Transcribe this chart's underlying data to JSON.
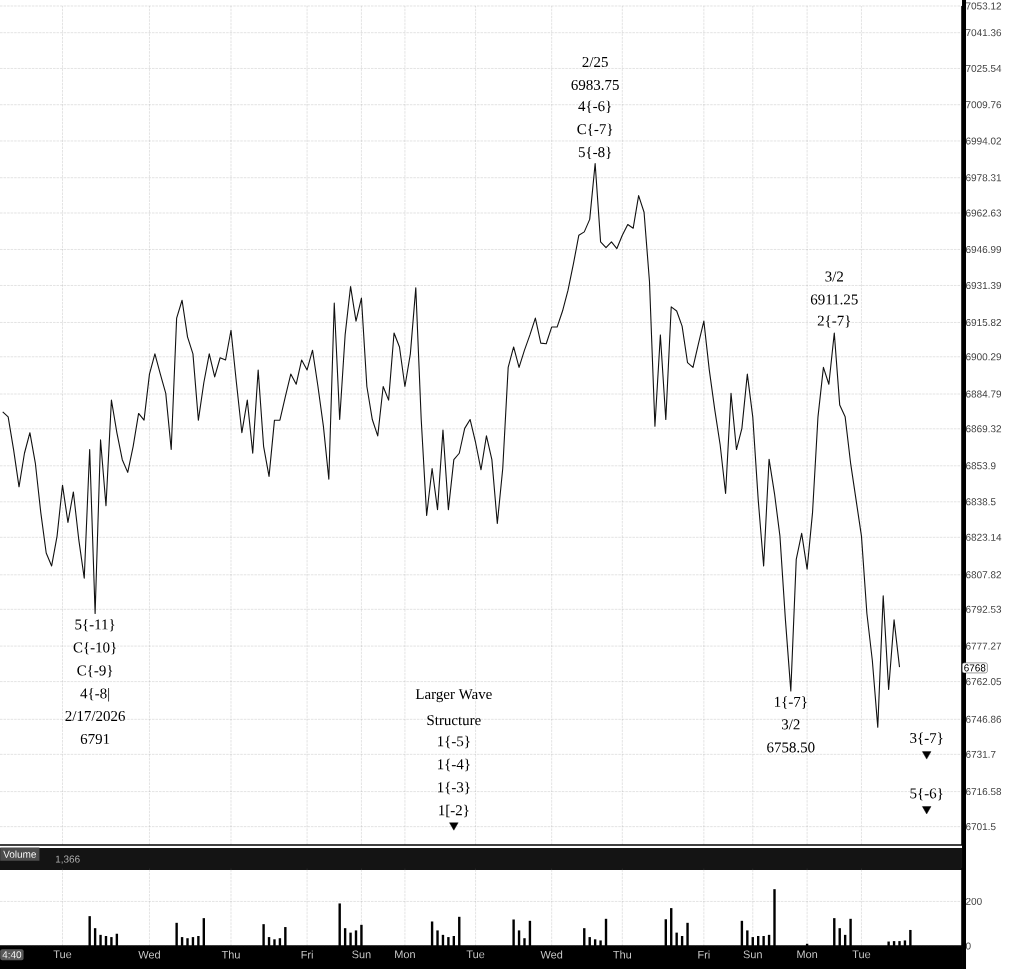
{
  "chart_data": [
    {
      "type": "line",
      "log": true,
      "grid": true,
      "tick_labels": "y",
      "categories": [
        null,
        null,
        null,
        null,
        null,
        null,
        null,
        null,
        null,
        null,
        null,
        null,
        null,
        null,
        null,
        null,
        null,
        null,
        null,
        null,
        null,
        null,
        null,
        null,
        null,
        null,
        null,
        null,
        null,
        null,
        null,
        null,
        null,
        null,
        null,
        null,
        null,
        null,
        null,
        null,
        null,
        null,
        null,
        null,
        null,
        null,
        null,
        null,
        null,
        null,
        null,
        null,
        null,
        null,
        null,
        null,
        null,
        null,
        null,
        null,
        null,
        null,
        null,
        null,
        null,
        null,
        null,
        null,
        null,
        null,
        null,
        null,
        null,
        null,
        null,
        null,
        null,
        null,
        null,
        null,
        null,
        null,
        null,
        null,
        null,
        null,
        null,
        null,
        null,
        null,
        null,
        null,
        null,
        null,
        null,
        null,
        null,
        null,
        null,
        null,
        null,
        null,
        null,
        null,
        null,
        null,
        null,
        null,
        null,
        null,
        null,
        null,
        null,
        null,
        null,
        null,
        null,
        null,
        null,
        null,
        null,
        null,
        null,
        null,
        null,
        null,
        null,
        null,
        null,
        null,
        null,
        null,
        null,
        null,
        null,
        null,
        null,
        null,
        null,
        null,
        null,
        null,
        null,
        null,
        null,
        null,
        null,
        null,
        null,
        null,
        null,
        null,
        null,
        null,
        null,
        null,
        null,
        null,
        null,
        null,
        null,
        null,
        null,
        null,
        null,
        null,
        null,
        null,
        null,
        null,
        null,
        null,
        null,
        null,
        null,
        null,
        null
      ],
      "ylim": [
        6693.6,
        7053.12
      ],
      "yticks": [
        6701.5,
        6716.58,
        6731.7,
        6746.86,
        6762.05,
        6777.27,
        6792.53,
        6807.82,
        6823.14,
        6838.5,
        6853.9,
        6869.32,
        6884.79,
        6900.29,
        6915.82,
        6931.39,
        6946.99,
        6962.63,
        6978.31,
        6994.02,
        7009.76,
        7025.54,
        7041.36,
        7053.12
      ],
      "series": [
        {
          "type": "line",
          "color": "#111111",
          "marker": "none",
          "values": [
            6877,
            6875,
            6861,
            6845,
            6859,
            6868,
            6855,
            6834,
            6817,
            6811,
            6824,
            6846,
            6830,
            6843,
            6822,
            6806,
            6861,
            6791,
            6865,
            6837,
            6882,
            6868,
            6856,
            6851,
            6862,
            6876,
            6873,
            6893,
            6902,
            6893,
            6885,
            6861,
            6917,
            6925,
            6909,
            6902,
            6873,
            6890,
            6902,
            6892,
            6900,
            6899,
            6912,
            6890,
            6868,
            6882,
            6859,
            6895,
            6862,
            6849,
            6873,
            6873,
            6883,
            6893,
            6889,
            6899,
            6895,
            6903,
            6888,
            6871,
            6848,
            6924,
            6874,
            6910,
            6931,
            6916,
            6926,
            6888,
            6874,
            6867,
            6888,
            6882,
            6911,
            6905,
            6888,
            6902,
            6930,
            6874,
            6833,
            6853,
            6835,
            6869,
            6835,
            6856,
            6859,
            6870,
            6874,
            6864,
            6852,
            6867,
            6856,
            6829,
            6853,
            6896,
            6905,
            6896,
            6903,
            6910,
            6917,
            6907,
            6906,
            6913,
            6913,
            6920,
            6929,
            6941,
            6953,
            6955,
            6960,
            6983.75,
            6950,
            6948,
            6950,
            6947,
            6953,
            6958,
            6956,
            6970,
            6963,
            6933,
            6871,
            6910,
            6874,
            6922,
            6920,
            6914,
            6898,
            6896,
            6906,
            6916,
            6895,
            6878,
            6863,
            6842,
            6885,
            6861,
            6870,
            6893,
            6875,
            6839,
            6811,
            6857,
            6842,
            6824,
            6789,
            6758.5,
            6814,
            6825,
            6810,
            6834,
            6875,
            6896,
            6889,
            6911.25,
            6880,
            6875,
            6855,
            6839,
            6824,
            6791,
            6771,
            6743,
            6799,
            6759,
            6788,
            6768,
            null,
            null,
            null,
            null,
            null,
            null,
            null,
            null,
            null,
            null,
            null
          ]
        },
        {
          "type": "scatter",
          "color": "#000000",
          "marker": "triangle",
          "values": [
            null,
            null,
            null,
            null,
            null,
            null,
            null,
            null,
            null,
            null,
            null,
            null,
            null,
            null,
            null,
            null,
            null,
            null,
            null,
            null,
            null,
            null,
            null,
            null,
            null,
            null,
            null,
            null,
            null,
            null,
            null,
            null,
            null,
            null,
            null,
            null,
            null,
            null,
            null,
            null,
            null,
            null,
            null,
            null,
            null,
            null,
            null,
            null,
            null,
            null,
            null,
            null,
            null,
            null,
            null,
            null,
            null,
            null,
            null,
            null,
            null,
            null,
            null,
            null,
            null,
            null,
            null,
            null,
            null,
            null,
            null,
            null,
            null,
            null,
            null,
            null,
            null,
            null,
            null,
            null,
            null,
            null,
            null,
            6702,
            null,
            null,
            null,
            null,
            null,
            null,
            null,
            null,
            null,
            null,
            null,
            null,
            null,
            null,
            null,
            null,
            null,
            null,
            null,
            null,
            null,
            null,
            null,
            null,
            null,
            null,
            null,
            null,
            null,
            null,
            null,
            null,
            null,
            null,
            null,
            null,
            null,
            null,
            null,
            null,
            null,
            null,
            null,
            null,
            null,
            null,
            null,
            null,
            null,
            null,
            null,
            null,
            null,
            null,
            null,
            null,
            null,
            null,
            null,
            null,
            null,
            null,
            null,
            null,
            null,
            null,
            null,
            null,
            null,
            null,
            null,
            null,
            null,
            null,
            null,
            null,
            null,
            null,
            null,
            null,
            null,
            null,
            null,
            null,
            null,
            null,
            null,
            null,
            null,
            null,
            null,
            null,
            null
          ]
        },
        {
          "type": "scatter",
          "color": "#000000",
          "marker": "triangle",
          "values": [
            null,
            null,
            null,
            null,
            null,
            null,
            null,
            null,
            null,
            null,
            null,
            null,
            null,
            null,
            null,
            null,
            null,
            null,
            null,
            null,
            null,
            null,
            null,
            null,
            null,
            null,
            null,
            null,
            null,
            null,
            null,
            null,
            null,
            null,
            null,
            null,
            null,
            null,
            null,
            null,
            null,
            null,
            null,
            null,
            null,
            null,
            null,
            null,
            null,
            null,
            null,
            null,
            null,
            null,
            null,
            null,
            null,
            null,
            null,
            null,
            null,
            null,
            null,
            null,
            null,
            null,
            null,
            null,
            null,
            null,
            null,
            null,
            null,
            null,
            null,
            null,
            null,
            null,
            null,
            null,
            null,
            null,
            null,
            null,
            null,
            null,
            null,
            null,
            null,
            null,
            null,
            null,
            null,
            null,
            null,
            null,
            null,
            null,
            null,
            null,
            null,
            null,
            null,
            null,
            null,
            null,
            null,
            null,
            null,
            null,
            null,
            null,
            null,
            null,
            null,
            null,
            null,
            null,
            null,
            null,
            null,
            null,
            null,
            null,
            null,
            null,
            null,
            null,
            null,
            null,
            null,
            null,
            null,
            null,
            null,
            null,
            null,
            null,
            null,
            null,
            null,
            null,
            null,
            null,
            null,
            null,
            null,
            null,
            null,
            null,
            null,
            null,
            null,
            null,
            null,
            null,
            null,
            null,
            null,
            null,
            null,
            null,
            null,
            null,
            null,
            null,
            null,
            null,
            null,
            null,
            6732,
            null,
            null,
            null,
            null,
            null,
            null
          ]
        },
        {
          "type": "scatter",
          "color": "#000000",
          "marker": "triangle",
          "values": [
            null,
            null,
            null,
            null,
            null,
            null,
            null,
            null,
            null,
            null,
            null,
            null,
            null,
            null,
            null,
            null,
            null,
            null,
            null,
            null,
            null,
            null,
            null,
            null,
            null,
            null,
            null,
            null,
            null,
            null,
            null,
            null,
            null,
            null,
            null,
            null,
            null,
            null,
            null,
            null,
            null,
            null,
            null,
            null,
            null,
            null,
            null,
            null,
            null,
            null,
            null,
            null,
            null,
            null,
            null,
            null,
            null,
            null,
            null,
            null,
            null,
            null,
            null,
            null,
            null,
            null,
            null,
            null,
            null,
            null,
            null,
            null,
            null,
            null,
            null,
            null,
            null,
            null,
            null,
            null,
            null,
            null,
            null,
            null,
            null,
            null,
            null,
            null,
            null,
            null,
            null,
            null,
            null,
            null,
            null,
            null,
            null,
            null,
            null,
            null,
            null,
            null,
            null,
            null,
            null,
            null,
            null,
            null,
            null,
            null,
            null,
            null,
            null,
            null,
            null,
            null,
            null,
            null,
            null,
            null,
            null,
            null,
            null,
            null,
            null,
            null,
            null,
            null,
            null,
            null,
            null,
            null,
            null,
            null,
            null,
            null,
            null,
            null,
            null,
            null,
            null,
            null,
            null,
            null,
            null,
            null,
            null,
            null,
            null,
            null,
            null,
            null,
            null,
            null,
            null,
            null,
            null,
            null,
            null,
            null,
            null,
            null,
            null,
            null,
            null,
            null,
            null,
            null,
            null,
            null,
            6709,
            null,
            null,
            null,
            null,
            null,
            null
          ]
        }
      ],
      "annotations": [
        "6768",
        {
          "text": "5{-11}",
          "y": 6791
        },
        "C{-10}",
        "C{-9}",
        "4{-8|",
        "2/17/2026",
        "6791",
        {
          "text": "1[-2}",
          "y": 6702
        },
        "1{-3}",
        "1{-4}",
        "1{-5}",
        "Structure",
        "Larger Wave",
        {
          "text": "5{-8}",
          "y": 6983.75
        },
        "C{-7}",
        "4{-6}",
        "6983.75",
        "2/25",
        {
          "text": "2{-7}",
          "y": 6911.25
        },
        "6911.25",
        "3/2",
        {
          "text": "1{-7}",
          "y": 6758.5
        },
        "3/2",
        "6758.50",
        {
          "text": "3{-7}",
          "y": 6732
        },
        {
          "text": "5{-6}",
          "y": 6709
        }
      ]
    },
    {
      "type": "bar",
      "title": "Volume",
      "color": "#000000",
      "grid": true,
      "categories": [
        null,
        null,
        null,
        null,
        null,
        null,
        null,
        null,
        null,
        null,
        null,
        "Tue",
        null,
        null,
        null,
        null,
        null,
        null,
        null,
        null,
        null,
        null,
        null,
        null,
        null,
        null,
        null,
        "Wed",
        null,
        null,
        null,
        null,
        null,
        null,
        null,
        null,
        null,
        null,
        null,
        null,
        null,
        null,
        "Thu",
        null,
        null,
        null,
        null,
        null,
        null,
        null,
        null,
        null,
        null,
        null,
        null,
        null,
        "Fri",
        null,
        null,
        null,
        null,
        null,
        null,
        null,
        null,
        null,
        "Sun",
        null,
        null,
        null,
        null,
        null,
        null,
        null,
        "Mon",
        null,
        null,
        null,
        null,
        null,
        null,
        null,
        null,
        null,
        null,
        null,
        null,
        "Tue",
        null,
        null,
        null,
        null,
        null,
        null,
        null,
        null,
        null,
        null,
        null,
        null,
        null,
        "Wed",
        null,
        null,
        null,
        null,
        null,
        null,
        null,
        null,
        null,
        null,
        null,
        null,
        "Thu",
        null,
        null,
        null,
        null,
        null,
        null,
        null,
        null,
        null,
        null,
        null,
        null,
        null,
        null,
        "Fri",
        null,
        null,
        null,
        null,
        null,
        null,
        null,
        null,
        "Sun",
        null,
        null,
        null,
        null,
        null,
        null,
        null,
        null,
        null,
        "Mon",
        null,
        null,
        null,
        null,
        null,
        null,
        null,
        null,
        null,
        "Tue",
        null,
        null,
        null,
        null,
        null,
        null,
        null,
        null,
        null,
        null,
        null,
        null,
        null,
        null,
        null,
        null,
        null,
        null
      ],
      "ylim": [
        0,
        350
      ],
      "yticks": [
        0,
        200
      ],
      "values": [
        null,
        null,
        null,
        null,
        null,
        null,
        null,
        null,
        null,
        null,
        null,
        null,
        null,
        null,
        null,
        null,
        134,
        80,
        50,
        45,
        40,
        55,
        null,
        null,
        null,
        null,
        null,
        null,
        null,
        null,
        null,
        null,
        104,
        40,
        35,
        40,
        45,
        125,
        null,
        null,
        null,
        null,
        null,
        null,
        null,
        null,
        null,
        null,
        98,
        40,
        30,
        35,
        85,
        null,
        null,
        null,
        null,
        null,
        null,
        null,
        null,
        null,
        191,
        80,
        60,
        70,
        95,
        null,
        null,
        null,
        null,
        null,
        null,
        null,
        null,
        null,
        null,
        null,
        null,
        110,
        70,
        50,
        40,
        45,
        131,
        null,
        null,
        null,
        null,
        null,
        null,
        null,
        null,
        null,
        119,
        70,
        35,
        113,
        null,
        null,
        null,
        null,
        null,
        null,
        null,
        null,
        null,
        80,
        40,
        30,
        25,
        122,
        null,
        null,
        null,
        null,
        null,
        null,
        null,
        null,
        null,
        null,
        120,
        170,
        60,
        45,
        104,
        null,
        null,
        null,
        null,
        null,
        null,
        null,
        null,
        null,
        113,
        70,
        40,
        45,
        45,
        50,
        255,
        null,
        null,
        null,
        null,
        null,
        10,
        null,
        null,
        null,
        null,
        125,
        80,
        50,
        122,
        null,
        null,
        null,
        null,
        null,
        null,
        20,
        22,
        22,
        25,
        72,
        null,
        null,
        null,
        null,
        null,
        null,
        null,
        null,
        null
      ],
      "annotations": [
        "1,366",
        "4:40"
      ]
    }
  ]
}
